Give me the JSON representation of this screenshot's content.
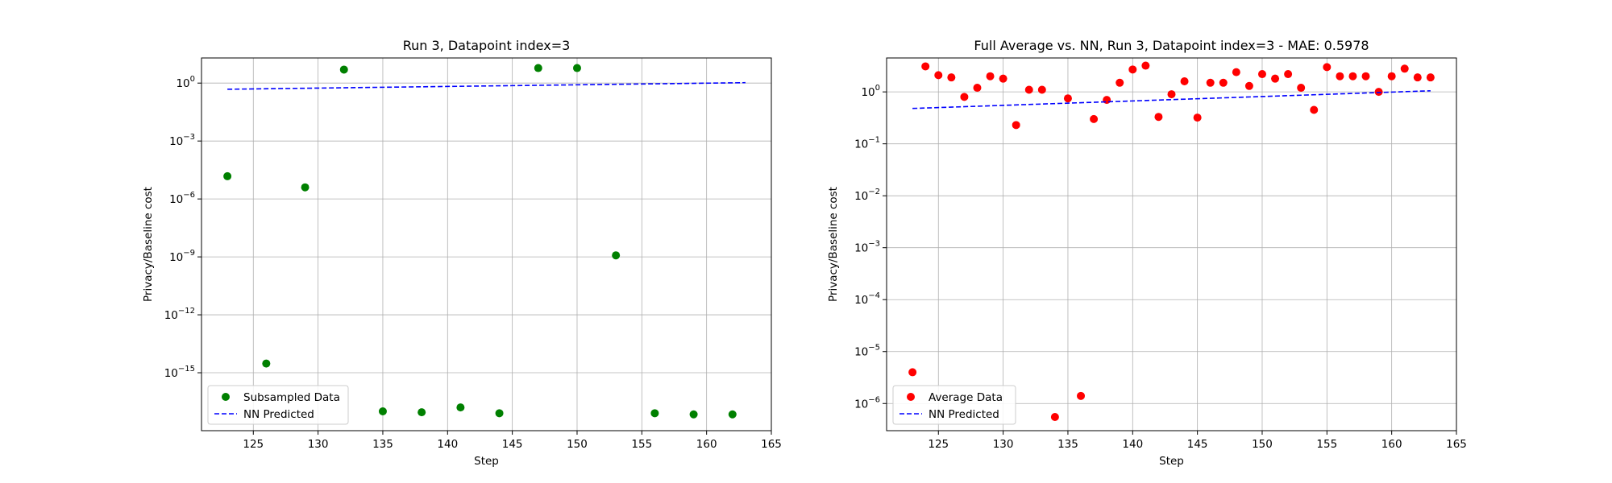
{
  "chart_data": [
    {
      "type": "scatter",
      "title": "Run 3, Datapoint index=3",
      "xlabel": "Step",
      "ylabel": "Privacy/Baseline cost",
      "xlim": [
        121,
        165
      ],
      "ylim": [
        1e-18,
        20
      ],
      "yscale": "log",
      "grid": true,
      "legend_position": "lower-left",
      "x_ticks": [
        125,
        130,
        135,
        140,
        145,
        150,
        155,
        160,
        165
      ],
      "y_ticks": [
        1e-15,
        1e-12,
        1e-09,
        1e-06,
        0.001,
        1
      ],
      "y_tick_exponents": [
        "−15",
        "−12",
        "−9",
        "−6",
        "−3",
        "0"
      ],
      "series": [
        {
          "name": "Subsampled Data",
          "kind": "points",
          "color": "#008000",
          "x": [
            123,
            126,
            129,
            132,
            135,
            138,
            141,
            144,
            147,
            150,
            153,
            156,
            159,
            162
          ],
          "y": [
            1.5e-05,
            3e-15,
            4e-06,
            5.0,
            1e-17,
            9e-18,
            1.6e-17,
            8e-18,
            6.0,
            6.0,
            1.2e-09,
            8e-18,
            7e-18,
            7e-18
          ]
        },
        {
          "name": "NN Predicted",
          "kind": "dashed-line",
          "color": "#0000ff",
          "x": [
            123,
            163
          ],
          "y": [
            0.48,
            1.05
          ]
        }
      ]
    },
    {
      "type": "scatter",
      "title": "Full Average vs. NN, Run 3, Datapoint index=3 - MAE: 0.5978",
      "xlabel": "Step",
      "ylabel": "Privacy/Baseline cost",
      "xlim": [
        121,
        165
      ],
      "ylim": [
        3e-07,
        4.5
      ],
      "yscale": "log",
      "grid": true,
      "legend_position": "lower-left",
      "x_ticks": [
        125,
        130,
        135,
        140,
        145,
        150,
        155,
        160,
        165
      ],
      "y_ticks": [
        1e-06,
        1e-05,
        0.0001,
        0.001,
        0.01,
        0.1,
        1
      ],
      "y_tick_exponents": [
        "−6",
        "−5",
        "−4",
        "−3",
        "−2",
        "−1",
        "0"
      ],
      "series": [
        {
          "name": "Average Data",
          "kind": "points",
          "color": "#ff0000",
          "x": [
            123,
            124,
            125,
            126,
            127,
            128,
            129,
            130,
            131,
            132,
            133,
            134,
            135,
            136,
            137,
            138,
            139,
            140,
            141,
            142,
            143,
            144,
            145,
            146,
            147,
            148,
            149,
            150,
            151,
            152,
            153,
            154,
            155,
            156,
            157,
            158,
            159,
            160,
            161,
            162,
            163
          ],
          "y": [
            4e-06,
            3.1,
            2.1,
            1.9,
            0.8,
            1.2,
            2.0,
            1.8,
            0.23,
            1.1,
            1.1,
            5.5e-07,
            0.75,
            1.4e-06,
            0.3,
            0.7,
            1.5,
            2.7,
            3.2,
            0.33,
            0.9,
            1.6,
            0.32,
            1.5,
            1.5,
            2.4,
            1.3,
            2.2,
            1.8,
            2.2,
            1.2,
            0.45,
            3.0,
            2.0,
            2.0,
            2.0,
            1.0,
            2.0,
            2.8,
            1.9,
            1.9
          ]
        },
        {
          "name": "NN Predicted",
          "kind": "dashed-line",
          "color": "#0000ff",
          "x": [
            123,
            163
          ],
          "y": [
            0.48,
            1.05
          ]
        }
      ]
    }
  ]
}
